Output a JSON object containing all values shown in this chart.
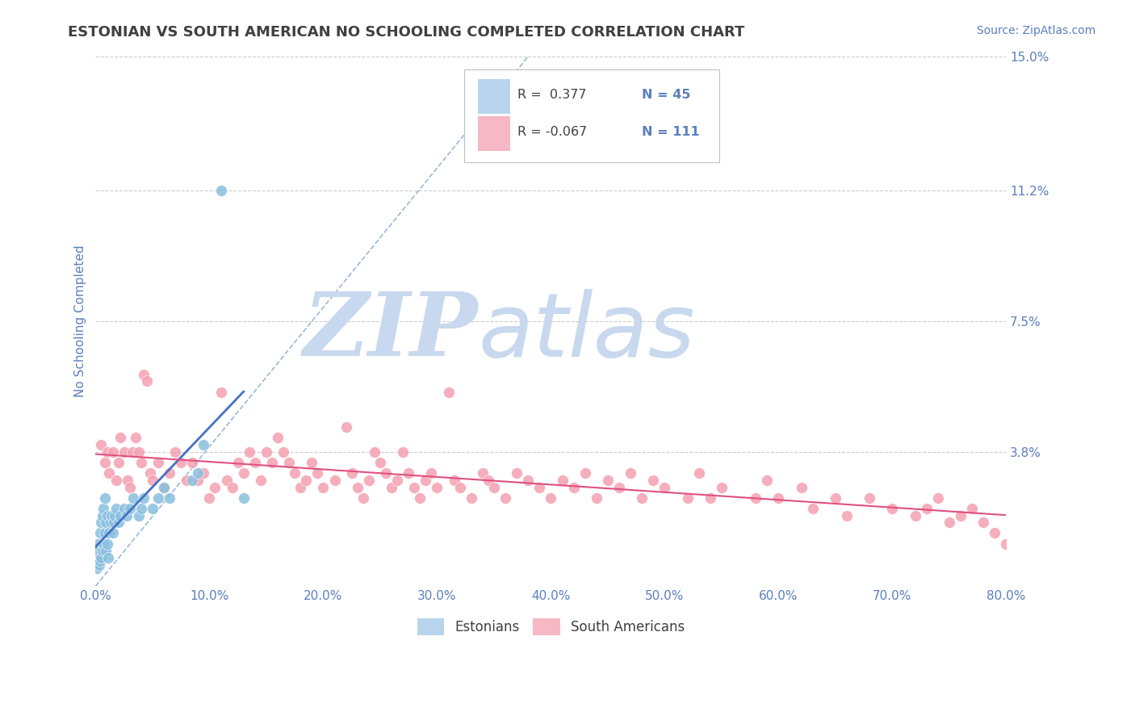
{
  "title": "ESTONIAN VS SOUTH AMERICAN NO SCHOOLING COMPLETED CORRELATION CHART",
  "source_text": "Source: ZipAtlas.com",
  "ylabel": "No Schooling Completed",
  "watermark_zip": "ZIP",
  "watermark_atlas": "atlas",
  "xlim": [
    0.0,
    0.8
  ],
  "ylim": [
    0.0,
    0.15
  ],
  "xticks": [
    0.0,
    0.1,
    0.2,
    0.3,
    0.4,
    0.5,
    0.6,
    0.7,
    0.8
  ],
  "xticklabels": [
    "0.0%",
    "10.0%",
    "20.0%",
    "30.0%",
    "40.0%",
    "50.0%",
    "60.0%",
    "70.0%",
    "80.0%"
  ],
  "ytick_values": [
    0.038,
    0.075,
    0.112,
    0.15
  ],
  "ytick_labels": [
    "3.8%",
    "7.5%",
    "11.2%",
    "15.0%"
  ],
  "legend_r1": "R =  0.377",
  "legend_n1": "N = 45",
  "legend_r2": "R = -0.067",
  "legend_n2": "N = 111",
  "color_estonian": "#89bfdf",
  "color_south_american": "#f4a0b0",
  "color_estonian_line": "#4472c4",
  "color_south_american_line": "#e05080",
  "color_diag_line": "#9ab8d8",
  "color_grid": "#cccccc",
  "color_title": "#404040",
  "color_axis_label": "#5b7fbe",
  "color_watermark_zip": "#c8d8ee",
  "color_watermark_atlas": "#c8d8ee",
  "background_color": "#ffffff",
  "estonian_x": [
    0.001,
    0.002,
    0.002,
    0.003,
    0.003,
    0.004,
    0.004,
    0.005,
    0.005,
    0.006,
    0.006,
    0.007,
    0.007,
    0.008,
    0.008,
    0.009,
    0.009,
    0.01,
    0.01,
    0.011,
    0.012,
    0.013,
    0.014,
    0.015,
    0.016,
    0.017,
    0.018,
    0.02,
    0.022,
    0.025,
    0.027,
    0.03,
    0.033,
    0.038,
    0.04,
    0.042,
    0.05,
    0.055,
    0.06,
    0.065,
    0.085,
    0.09,
    0.095,
    0.11,
    0.13
  ],
  "estonian_y": [
    0.005,
    0.008,
    0.012,
    0.006,
    0.01,
    0.007,
    0.015,
    0.008,
    0.018,
    0.01,
    0.02,
    0.012,
    0.022,
    0.015,
    0.025,
    0.01,
    0.018,
    0.012,
    0.02,
    0.008,
    0.015,
    0.018,
    0.02,
    0.015,
    0.018,
    0.02,
    0.022,
    0.018,
    0.02,
    0.022,
    0.02,
    0.022,
    0.025,
    0.02,
    0.022,
    0.025,
    0.022,
    0.025,
    0.028,
    0.025,
    0.03,
    0.032,
    0.04,
    0.112,
    0.025
  ],
  "south_american_x": [
    0.005,
    0.008,
    0.01,
    0.012,
    0.015,
    0.018,
    0.02,
    0.022,
    0.025,
    0.028,
    0.03,
    0.032,
    0.035,
    0.038,
    0.04,
    0.042,
    0.045,
    0.048,
    0.05,
    0.055,
    0.06,
    0.065,
    0.07,
    0.075,
    0.08,
    0.085,
    0.09,
    0.095,
    0.1,
    0.105,
    0.11,
    0.115,
    0.12,
    0.125,
    0.13,
    0.135,
    0.14,
    0.145,
    0.15,
    0.155,
    0.16,
    0.165,
    0.17,
    0.175,
    0.18,
    0.185,
    0.19,
    0.195,
    0.2,
    0.21,
    0.22,
    0.225,
    0.23,
    0.235,
    0.24,
    0.245,
    0.25,
    0.255,
    0.26,
    0.265,
    0.27,
    0.275,
    0.28,
    0.285,
    0.29,
    0.295,
    0.3,
    0.31,
    0.315,
    0.32,
    0.33,
    0.34,
    0.345,
    0.35,
    0.36,
    0.37,
    0.38,
    0.39,
    0.4,
    0.41,
    0.42,
    0.43,
    0.44,
    0.45,
    0.46,
    0.47,
    0.48,
    0.49,
    0.5,
    0.52,
    0.53,
    0.54,
    0.55,
    0.58,
    0.59,
    0.6,
    0.62,
    0.63,
    0.65,
    0.66,
    0.68,
    0.7,
    0.72,
    0.73,
    0.74,
    0.75,
    0.76,
    0.77,
    0.78,
    0.79,
    0.8
  ],
  "south_american_y": [
    0.04,
    0.035,
    0.038,
    0.032,
    0.038,
    0.03,
    0.035,
    0.042,
    0.038,
    0.03,
    0.028,
    0.038,
    0.042,
    0.038,
    0.035,
    0.06,
    0.058,
    0.032,
    0.03,
    0.035,
    0.028,
    0.032,
    0.038,
    0.035,
    0.03,
    0.035,
    0.03,
    0.032,
    0.025,
    0.028,
    0.055,
    0.03,
    0.028,
    0.035,
    0.032,
    0.038,
    0.035,
    0.03,
    0.038,
    0.035,
    0.042,
    0.038,
    0.035,
    0.032,
    0.028,
    0.03,
    0.035,
    0.032,
    0.028,
    0.03,
    0.045,
    0.032,
    0.028,
    0.025,
    0.03,
    0.038,
    0.035,
    0.032,
    0.028,
    0.03,
    0.038,
    0.032,
    0.028,
    0.025,
    0.03,
    0.032,
    0.028,
    0.055,
    0.03,
    0.028,
    0.025,
    0.032,
    0.03,
    0.028,
    0.025,
    0.032,
    0.03,
    0.028,
    0.025,
    0.03,
    0.028,
    0.032,
    0.025,
    0.03,
    0.028,
    0.032,
    0.025,
    0.03,
    0.028,
    0.025,
    0.032,
    0.025,
    0.028,
    0.025,
    0.03,
    0.025,
    0.028,
    0.022,
    0.025,
    0.02,
    0.025,
    0.022,
    0.02,
    0.022,
    0.025,
    0.018,
    0.02,
    0.022,
    0.018,
    0.015,
    0.012
  ]
}
